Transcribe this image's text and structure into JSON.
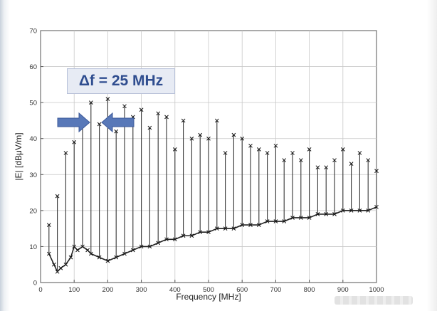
{
  "chart_data": {
    "type": "line",
    "title": "",
    "xlabel": "Frequency [MHz]",
    "ylabel": "|E| [dBμV/m]",
    "xlim": [
      0,
      1000
    ],
    "ylim": [
      0,
      70
    ],
    "x_ticks": [
      0,
      100,
      200,
      300,
      400,
      500,
      600,
      700,
      800,
      900,
      1000
    ],
    "y_ticks": [
      0,
      10,
      20,
      30,
      40,
      50,
      60,
      70
    ],
    "grid": true,
    "annotation": {
      "text": "Δf = 25 MHz",
      "arrows": [
        "right-pointing arrow at 125 MHz",
        "left-pointing arrow at 150 MHz"
      ]
    },
    "harmonic_spacing_mhz": 25,
    "peaks": {
      "x": [
        25,
        50,
        75,
        100,
        125,
        150,
        175,
        200,
        225,
        250,
        275,
        300,
        325,
        350,
        375,
        400,
        425,
        450,
        475,
        500,
        525,
        550,
        575,
        600,
        625,
        650,
        675,
        700,
        725,
        750,
        775,
        800,
        825,
        850,
        875,
        900,
        925,
        950,
        975,
        1000
      ],
      "y": [
        16,
        24,
        36,
        39,
        44,
        50,
        44,
        51,
        42,
        49,
        46,
        48,
        43,
        47,
        46,
        37,
        45,
        40,
        41,
        40,
        45,
        36,
        41,
        40,
        38,
        37,
        36,
        38,
        34,
        36,
        34,
        37,
        32,
        32,
        34,
        37,
        33,
        36,
        34,
        31
      ]
    },
    "noise_floor": {
      "x": [
        25,
        40,
        50,
        60,
        75,
        90,
        100,
        110,
        125,
        140,
        150,
        175,
        200,
        225,
        250,
        275,
        300,
        325,
        350,
        375,
        400,
        425,
        450,
        475,
        500,
        525,
        550,
        575,
        600,
        625,
        650,
        675,
        700,
        725,
        750,
        775,
        800,
        825,
        850,
        875,
        900,
        925,
        950,
        975,
        1000
      ],
      "y": [
        8,
        5,
        3,
        4,
        5,
        7,
        10,
        9,
        10,
        9,
        8,
        7,
        6,
        7,
        8,
        9,
        10,
        10,
        11,
        12,
        12,
        13,
        13,
        14,
        14,
        15,
        15,
        15,
        16,
        16,
        16,
        17,
        17,
        17,
        18,
        18,
        18,
        19,
        19,
        19,
        20,
        20,
        20,
        20,
        21
      ]
    }
  },
  "icons": {
    "arrow_right": "right-arrow-icon",
    "arrow_left": "left-arrow-icon"
  },
  "colors": {
    "arrow_fill": "#5878b8",
    "annotation_text": "#2f4d8f",
    "trace": "#222222"
  }
}
